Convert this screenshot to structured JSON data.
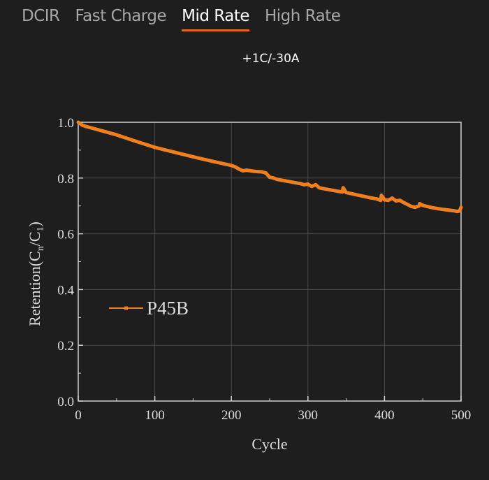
{
  "tabs": [
    {
      "label": "DCIR"
    },
    {
      "label": "Fast Charge"
    },
    {
      "label": "Mid Rate",
      "active": true
    },
    {
      "label": "High Rate"
    }
  ],
  "accent_color": "#e8661c",
  "chart_data": {
    "type": "line",
    "title": "+1C/-30A",
    "xlabel": "Cycle",
    "ylabel": "Retention(Cn/C1)",
    "ylabel_parts": {
      "main": "Retention(C",
      "sub1": "n",
      "mid": "/C",
      "sub2": "1",
      "end": ")"
    },
    "xlim": [
      0,
      500
    ],
    "ylim": [
      0,
      1.0
    ],
    "xticks": [
      "0",
      "100",
      "200",
      "300",
      "400",
      "500"
    ],
    "yticks": [
      "0.0",
      "0.2",
      "0.4",
      "0.6",
      "0.8",
      "1.0"
    ],
    "grid": true,
    "legend_position": "center-left",
    "series": [
      {
        "name": "P45B",
        "color": "#f07f1e",
        "x": [
          0,
          5,
          10,
          30,
          50,
          75,
          100,
          125,
          150,
          175,
          200,
          205,
          210,
          215,
          220,
          230,
          240,
          245,
          250,
          255,
          260,
          270,
          280,
          290,
          295,
          300,
          305,
          310,
          315,
          320,
          330,
          340,
          345,
          346,
          350,
          360,
          370,
          380,
          390,
          395,
          396,
          400,
          405,
          410,
          415,
          420,
          425,
          430,
          435,
          440,
          445,
          446,
          450,
          460,
          470,
          480,
          490,
          495,
          498,
          500
        ],
        "y": [
          1.0,
          0.99,
          0.985,
          0.97,
          0.955,
          0.932,
          0.91,
          0.893,
          0.876,
          0.86,
          0.845,
          0.84,
          0.832,
          0.826,
          0.828,
          0.824,
          0.822,
          0.818,
          0.803,
          0.8,
          0.795,
          0.79,
          0.785,
          0.78,
          0.776,
          0.778,
          0.77,
          0.776,
          0.765,
          0.762,
          0.757,
          0.752,
          0.75,
          0.765,
          0.748,
          0.742,
          0.736,
          0.73,
          0.725,
          0.72,
          0.738,
          0.722,
          0.72,
          0.728,
          0.718,
          0.72,
          0.712,
          0.705,
          0.698,
          0.695,
          0.7,
          0.708,
          0.702,
          0.695,
          0.69,
          0.686,
          0.683,
          0.68,
          0.682,
          0.695
        ]
      }
    ]
  }
}
